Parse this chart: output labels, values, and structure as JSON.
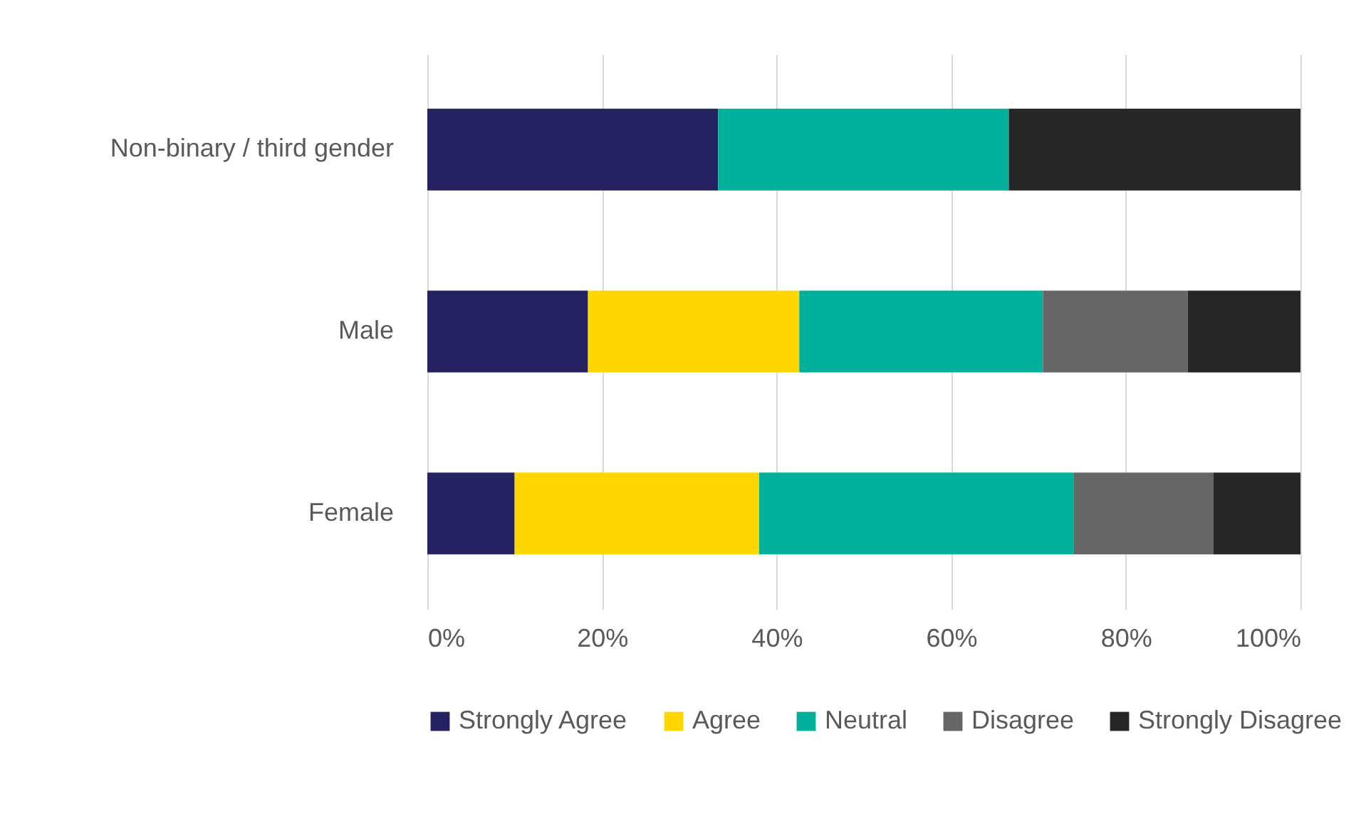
{
  "chart_data": {
    "type": "bar",
    "orientation": "horizontal",
    "stacked": true,
    "categories": [
      "Non-binary / third gender",
      "Male",
      "Female"
    ],
    "series": [
      {
        "name": "Strongly Agree",
        "color": "#262262",
        "values": [
          33.3,
          18.4,
          10
        ]
      },
      {
        "name": "Agree",
        "color": "#ffd700",
        "values": [
          0,
          24.2,
          28
        ]
      },
      {
        "name": "Neutral",
        "color": "#00b09b",
        "values": [
          33.3,
          27.9,
          36
        ]
      },
      {
        "name": "Disagree",
        "color": "#666666",
        "values": [
          0,
          16.6,
          16
        ]
      },
      {
        "name": "Strongly Disagree",
        "color": "#262626",
        "values": [
          33.4,
          12.9,
          10
        ]
      }
    ],
    "xlim": [
      0,
      100
    ],
    "xticks": [
      {
        "value": 0,
        "label": "0%"
      },
      {
        "value": 20,
        "label": "20%"
      },
      {
        "value": 40,
        "label": "40%"
      },
      {
        "value": 60,
        "label": "60%"
      },
      {
        "value": 80,
        "label": "80%"
      },
      {
        "value": 100,
        "label": "100%"
      }
    ],
    "grid": "x",
    "legend": "bottom"
  }
}
